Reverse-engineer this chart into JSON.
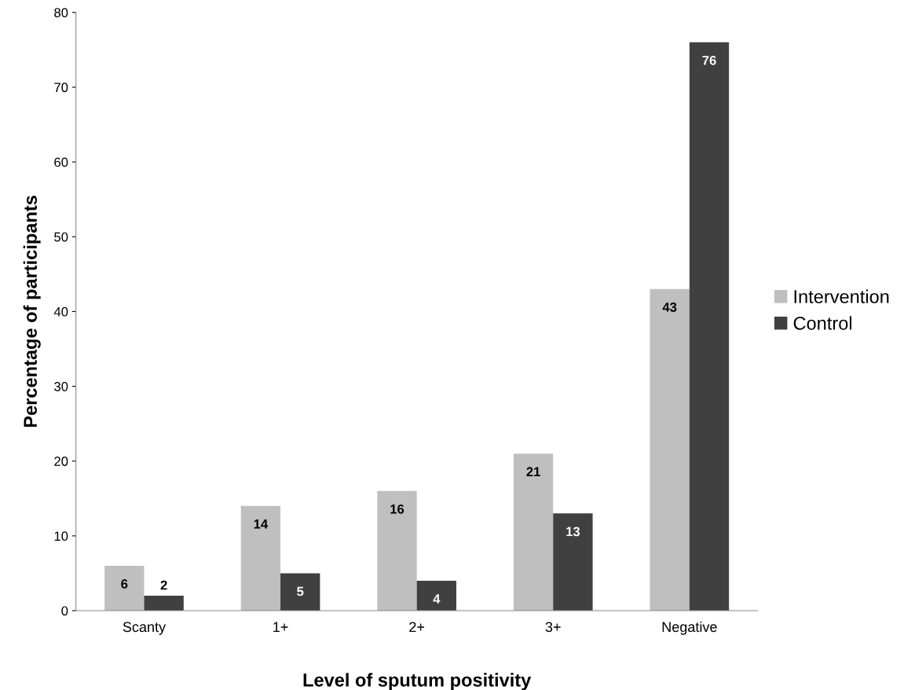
{
  "chart_data": {
    "type": "bar",
    "xlabel": "Level of sputum positivity",
    "ylabel": "Percentage of participants",
    "categories": [
      "Scanty",
      "1+",
      "2+",
      "3+",
      "Negative"
    ],
    "series": [
      {
        "name": "Intervention",
        "color": "#bfbfbf",
        "values": [
          6,
          14,
          16,
          21,
          43
        ]
      },
      {
        "name": "Control",
        "color": "#404040",
        "values": [
          2,
          5,
          4,
          13,
          76
        ]
      }
    ],
    "ylim": [
      0,
      80
    ],
    "yticks": [
      0,
      10,
      20,
      30,
      40,
      50,
      60,
      70,
      80
    ],
    "data_labels": true,
    "grid": false,
    "legend": "right"
  }
}
